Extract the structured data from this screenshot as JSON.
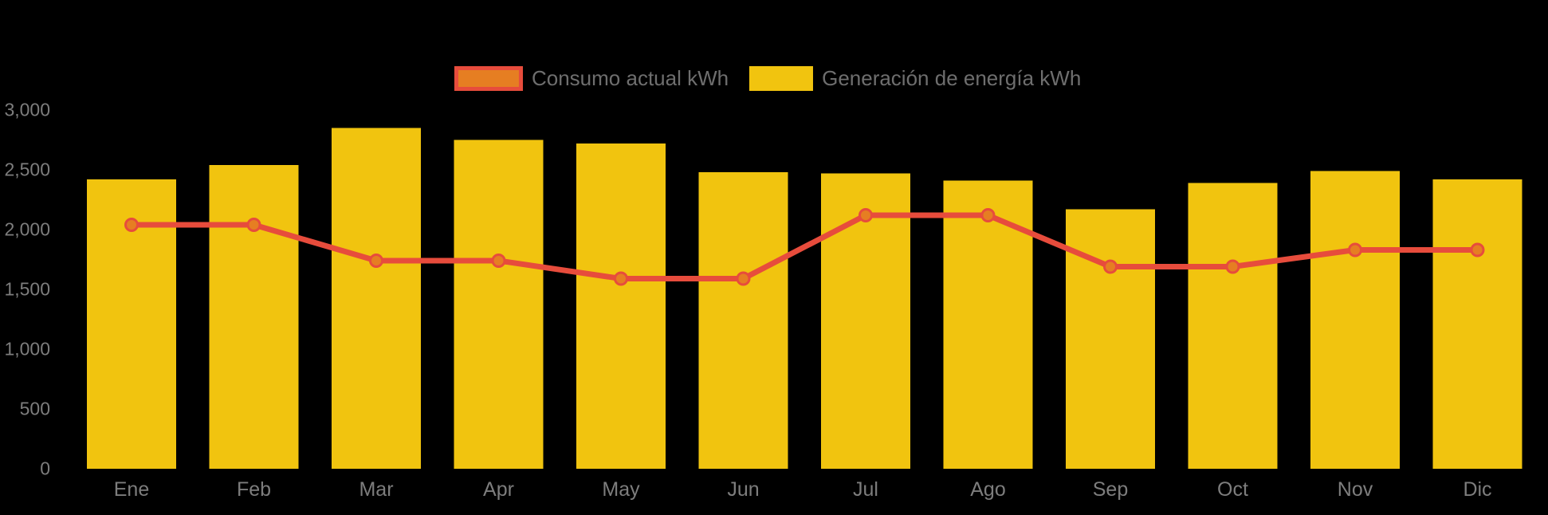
{
  "chart_data": {
    "type": "bar+line",
    "title": "",
    "xlabel": "",
    "ylabel": "",
    "background": "#000000",
    "grid": false,
    "legend_position": "top",
    "tick_color": "#7d7d7d",
    "legend_text_color": "#6e6e6e",
    "ylim": [
      0,
      3000
    ],
    "yticks": [
      {
        "value": 0,
        "label": "0"
      },
      {
        "value": 500,
        "label": "500"
      },
      {
        "value": 1000,
        "label": "1,000"
      },
      {
        "value": 1500,
        "label": "1,500"
      },
      {
        "value": 2000,
        "label": "2,000"
      },
      {
        "value": 2500,
        "label": "2,500"
      },
      {
        "value": 3000,
        "label": "3,000"
      }
    ],
    "categories": [
      "Ene",
      "Feb",
      "Mar",
      "Apr",
      "May",
      "Jun",
      "Jul",
      "Ago",
      "Sep",
      "Oct",
      "Nov",
      "Dic"
    ],
    "series": [
      {
        "name": "Consumo actual kWh",
        "type": "line",
        "line_color": "#E74C3C",
        "point_fill": "#E67E22",
        "values": [
          2040,
          2040,
          1740,
          1740,
          1590,
          1590,
          2120,
          2120,
          1690,
          1690,
          1830,
          1830
        ]
      },
      {
        "name": "Generación de energía kWh",
        "type": "bar",
        "bar_color": "#F1C40F",
        "values": [
          2420,
          2540,
          2850,
          2750,
          2720,
          2480,
          2470,
          2410,
          2170,
          2390,
          2490,
          2420
        ]
      }
    ]
  }
}
